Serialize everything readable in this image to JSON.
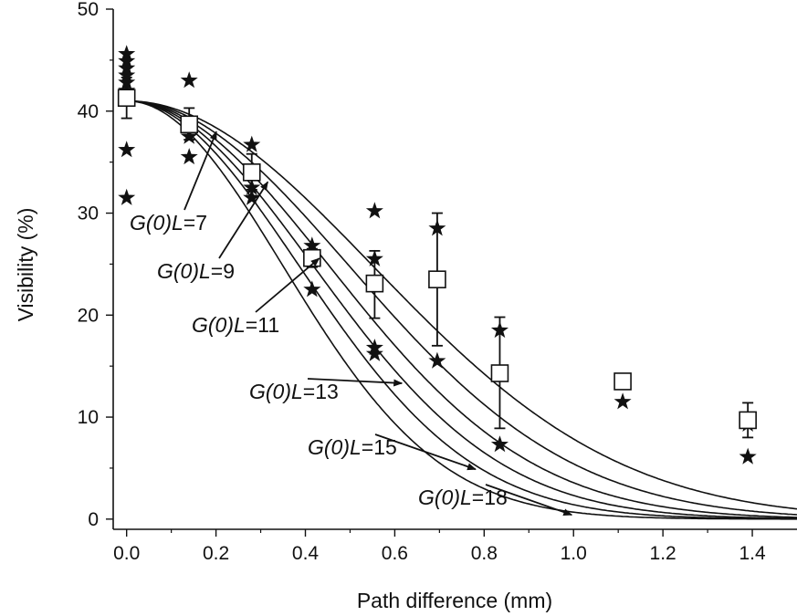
{
  "chart_data": {
    "type": "scatter",
    "title": "",
    "xlabel": "Path difference (mm)",
    "ylabel": "Visibility (%)",
    "xlim": [
      -0.03,
      1.5
    ],
    "ylim": [
      -1,
      50
    ],
    "x_ticks": [
      0.0,
      0.2,
      0.4,
      0.6,
      0.8,
      1.0,
      1.2,
      1.4
    ],
    "x_tick_labels": [
      "0.0",
      "0.2",
      "0.4",
      "0.6",
      "0.8",
      "1.0",
      "1.2",
      "1.4"
    ],
    "y_ticks": [
      0,
      10,
      20,
      30,
      40,
      50
    ],
    "y_tick_labels": [
      "0",
      "10",
      "20",
      "30",
      "40",
      "50"
    ],
    "grid": false,
    "series": [
      {
        "marker": "star",
        "points": [
          [
            0.0,
            45.6
          ],
          [
            0.0,
            44.9
          ],
          [
            0.0,
            44.2
          ],
          [
            0.0,
            43.5
          ],
          [
            0.0,
            42.8
          ],
          [
            0.0,
            42.0
          ],
          [
            0.0,
            36.2
          ],
          [
            0.0,
            31.5
          ],
          [
            0.14,
            43.0
          ],
          [
            0.14,
            37.5
          ],
          [
            0.14,
            35.5
          ],
          [
            0.28,
            36.7
          ],
          [
            0.28,
            32.5
          ],
          [
            0.28,
            31.5
          ],
          [
            0.415,
            26.8
          ],
          [
            0.415,
            25.5
          ],
          [
            0.415,
            22.5
          ],
          [
            0.555,
            30.2
          ],
          [
            0.555,
            25.5
          ],
          [
            0.555,
            16.8
          ],
          [
            0.555,
            16.2
          ],
          [
            0.695,
            28.5
          ],
          [
            0.695,
            15.5
          ],
          [
            0.835,
            18.5
          ],
          [
            0.835,
            7.3
          ],
          [
            1.11,
            11.5
          ],
          [
            1.39,
            9.3
          ],
          [
            1.39,
            6.1
          ]
        ]
      },
      {
        "marker": "open-square",
        "points": [
          {
            "x": 0.0,
            "y": 41.3,
            "err_low": 39.3,
            "err_high": 43.3
          },
          {
            "x": 0.14,
            "y": 38.7,
            "err_low": 37.2,
            "err_high": 40.3
          },
          {
            "x": 0.28,
            "y": 34.0,
            "err_low": 32.3,
            "err_high": 35.8
          },
          {
            "x": 0.415,
            "y": 25.6,
            "err_low": 24.7,
            "err_high": 26.5
          },
          {
            "x": 0.555,
            "y": 23.1,
            "err_low": 19.7,
            "err_high": 26.3
          },
          {
            "x": 0.695,
            "y": 23.5,
            "err_low": 17.0,
            "err_high": 30.0
          },
          {
            "x": 0.835,
            "y": 14.3,
            "err_low": 8.9,
            "err_high": 19.8
          },
          {
            "x": 1.11,
            "y": 13.5,
            "err_low": 12.8,
            "err_high": 14.2
          },
          {
            "x": 1.39,
            "y": 9.7,
            "err_low": 8.0,
            "err_high": 11.4
          }
        ]
      }
    ],
    "curves": [
      {
        "label": "G(0)L=7",
        "v0": 41.0,
        "scale_mm": 0.778
      },
      {
        "label": "G(0)L=9",
        "v0": 41.0,
        "scale_mm": 0.703
      },
      {
        "label": "G(0)L=11",
        "v0": 41.0,
        "scale_mm": 0.64
      },
      {
        "label": "G(0)L=13",
        "v0": 41.0,
        "scale_mm": 0.59
      },
      {
        "label": "G(0)L=15",
        "v0": 41.0,
        "scale_mm": 0.545
      },
      {
        "label": "G(0)L=18",
        "v0": 41.0,
        "scale_mm": 0.494
      }
    ],
    "annotations": [
      {
        "prefix": "G(0)",
        "italic_L": "L",
        "suffix": "=7",
        "arrow_to_curve": "G(0)L=7",
        "arrow_tip_x": 0.205
      },
      {
        "prefix": "G(0)",
        "italic_L": "L",
        "suffix": "=9",
        "arrow_to_curve": "G(0)L=9",
        "arrow_tip_x": 0.32
      },
      {
        "prefix": "G(0)",
        "italic_L": "L",
        "suffix": "=11",
        "arrow_to_curve": "G(0)L=11",
        "arrow_tip_x": 0.435
      },
      {
        "prefix": "G(0)",
        "italic_L": "L",
        "suffix": "=13",
        "arrow_to_curve": "G(0)L=13",
        "arrow_tip_x": 0.62
      },
      {
        "prefix": "G(0)",
        "italic_L": "L",
        "suffix": "=15",
        "arrow_to_curve": "G(0)L=15",
        "arrow_tip_x": 0.785
      },
      {
        "prefix": "G(0)",
        "italic_L": "L",
        "suffix": "=18",
        "arrow_to_curve": "G(0)L=18",
        "arrow_tip_x": 1.0
      }
    ]
  }
}
